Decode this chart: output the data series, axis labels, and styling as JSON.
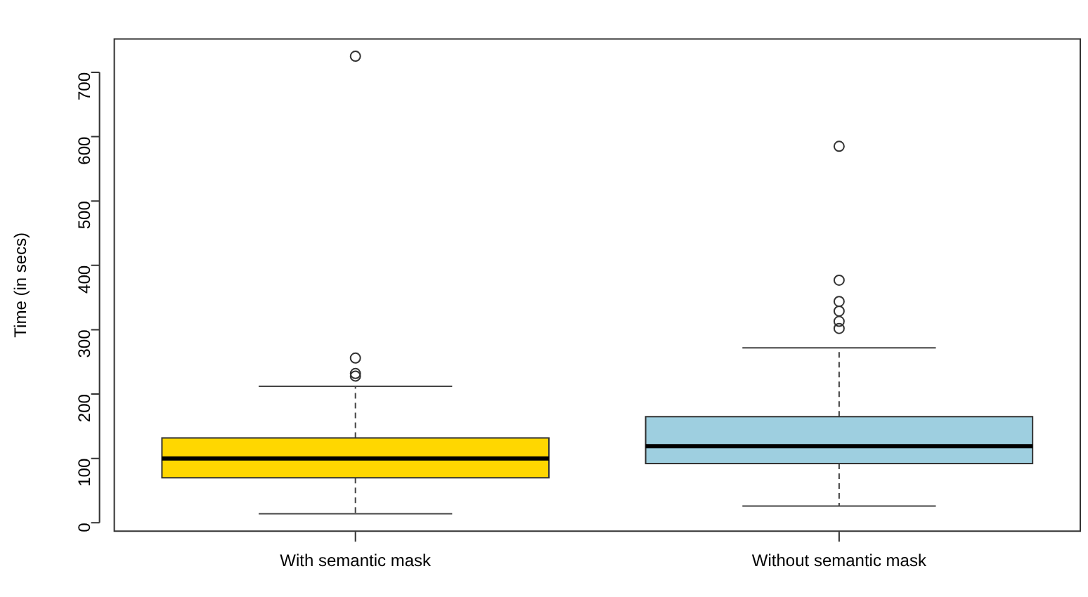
{
  "chart_data": {
    "type": "box",
    "ylabel": "Time (in secs)",
    "categories": [
      "With semantic mask",
      "Without semantic mask"
    ],
    "colors": [
      "#ffd700",
      "#9ecfe0"
    ],
    "boxes": [
      {
        "low": 14,
        "q1": 70,
        "median": 100,
        "q3": 132,
        "high": 212,
        "outliers": [
          725,
          256,
          232,
          228
        ]
      },
      {
        "low": 26,
        "q1": 92,
        "median": 119,
        "q3": 165,
        "high": 272,
        "outliers": [
          585,
          377,
          344,
          329,
          313,
          302
        ]
      }
    ],
    "ylim": [
      -14,
      753
    ],
    "yticks": [
      0,
      100,
      200,
      300,
      400,
      500,
      600,
      700
    ],
    "grid": false,
    "legend": false
  }
}
